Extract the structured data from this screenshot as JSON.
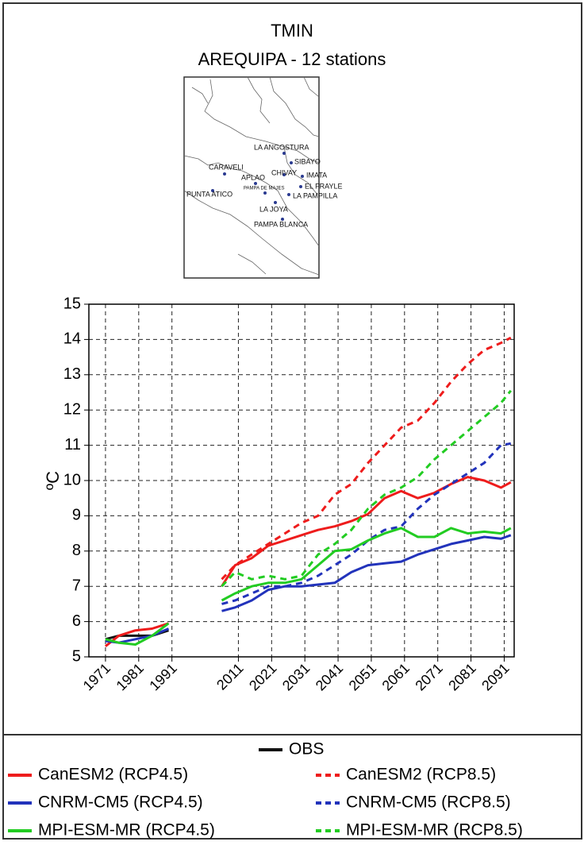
{
  "chart_data": {
    "type": "line",
    "title": "TMIN",
    "subtitle": "AREQUIPA - 12 stations",
    "y_label": "ºC",
    "x": [
      1971,
      1975,
      1980,
      1985,
      1990,
      2006,
      2010,
      2015,
      2020,
      2025,
      2030,
      2035,
      2040,
      2045,
      2050,
      2055,
      2060,
      2065,
      2070,
      2075,
      2080,
      2085,
      2090,
      2093
    ],
    "series": [
      {
        "name": "OBS",
        "color": "#111111",
        "style": "solid",
        "values": [
          5.5,
          5.6,
          5.6,
          5.6,
          5.75,
          null,
          null,
          null,
          null,
          null,
          null,
          null,
          null,
          null,
          null,
          null,
          null,
          null,
          null,
          null,
          null,
          null,
          null,
          null
        ]
      },
      {
        "name": "CanESM2 (RCP4.5)",
        "color": "#ee1c1c",
        "style": "solid",
        "values": [
          5.3,
          5.6,
          5.75,
          5.8,
          5.95,
          7.0,
          7.6,
          7.8,
          8.15,
          8.3,
          8.45,
          8.6,
          8.7,
          8.85,
          9.05,
          9.5,
          9.7,
          9.5,
          9.65,
          9.9,
          10.1,
          10.0,
          9.8,
          9.95
        ]
      },
      {
        "name": "CanESM2 (RCP8.5)",
        "color": "#ee1c1c",
        "style": "dashed",
        "values": [
          null,
          null,
          null,
          null,
          null,
          7.2,
          7.6,
          7.9,
          8.2,
          8.5,
          8.8,
          9.0,
          9.6,
          9.9,
          10.5,
          11.0,
          11.5,
          11.7,
          12.2,
          12.8,
          13.3,
          13.7,
          13.9,
          14.05
        ]
      },
      {
        "name": "CNRM-CM5 (RCP4.5)",
        "color": "#2233bb",
        "style": "solid",
        "values": [
          5.45,
          5.4,
          5.5,
          5.6,
          5.8,
          6.3,
          6.4,
          6.6,
          6.9,
          7.0,
          7.0,
          7.05,
          7.1,
          7.4,
          7.6,
          7.65,
          7.7,
          7.9,
          8.05,
          8.2,
          8.3,
          8.4,
          8.35,
          8.45
        ]
      },
      {
        "name": "CNRM-CM5 (RCP8.5)",
        "color": "#2233bb",
        "style": "dashed",
        "values": [
          null,
          null,
          null,
          null,
          null,
          6.5,
          6.6,
          6.8,
          7.0,
          7.0,
          7.1,
          7.3,
          7.6,
          7.9,
          8.3,
          8.6,
          8.7,
          9.2,
          9.6,
          9.9,
          10.2,
          10.5,
          11.0,
          11.05
        ]
      },
      {
        "name": "MPI-ESM-MR (RCP4.5)",
        "color": "#22cc22",
        "style": "solid",
        "values": [
          5.5,
          5.4,
          5.35,
          5.6,
          5.95,
          6.6,
          6.8,
          7.0,
          7.1,
          7.1,
          7.2,
          7.6,
          8.0,
          8.05,
          8.3,
          8.5,
          8.65,
          8.4,
          8.4,
          8.65,
          8.5,
          8.55,
          8.5,
          8.65
        ]
      },
      {
        "name": "MPI-ESM-MR (RCP8.5)",
        "color": "#22cc22",
        "style": "dashed",
        "values": [
          null,
          null,
          null,
          null,
          null,
          7.0,
          7.4,
          7.2,
          7.3,
          7.2,
          7.3,
          7.9,
          8.2,
          8.6,
          9.2,
          9.6,
          9.8,
          10.1,
          10.6,
          11.0,
          11.4,
          11.8,
          12.2,
          12.55
        ]
      }
    ],
    "xlim": [
      1966,
      2094
    ],
    "xticks": [
      1971,
      1981,
      1991,
      2011,
      2021,
      2031,
      2041,
      2051,
      2061,
      2071,
      2081,
      2091
    ],
    "ylim": [
      5,
      15
    ],
    "yticks": [
      5,
      6,
      7,
      8,
      9,
      10,
      11,
      12,
      13,
      14,
      15
    ],
    "grid": true,
    "map_stations": [
      "LA ANGOSTURA",
      "SIBAYO",
      "CARAVELI",
      "CHIVAY",
      "IMATA",
      "APLAO",
      "PAMPA DE MAJES",
      "EL FRAYLE",
      "PUNTA ATICO",
      "LA PAMPILLA",
      "LA JOYA",
      "PAMPA BLANCA"
    ]
  }
}
